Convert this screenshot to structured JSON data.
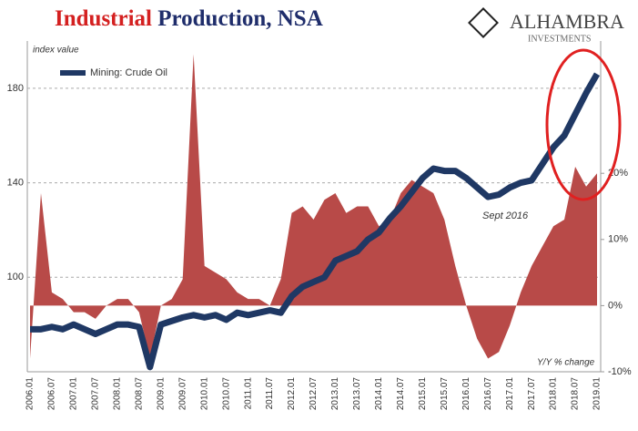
{
  "chart_data": {
    "type": "line-area",
    "title": "Industrial Production, NSA",
    "logo": {
      "name": "ALHAMBRA",
      "sub": "INVESTMENTS"
    },
    "y_label": "index value",
    "y2_label": "Y/Y % change",
    "annotation": "Sept 2016",
    "legend": "top-left",
    "categories": [
      "2006.01",
      null,
      "2006.07",
      null,
      "2007.01",
      null,
      "2007.07",
      null,
      "2008.01",
      null,
      "2008.07",
      null,
      "2009.01",
      null,
      "2009.07",
      null,
      "2010.01",
      null,
      "2010.07",
      null,
      "2011.01",
      null,
      "2011.07",
      null,
      "2012.01",
      null,
      "2012.07",
      null,
      "2013.01",
      null,
      "2013.07",
      null,
      "2014.01",
      null,
      "2014.07",
      null,
      "2015.01",
      null,
      "2015.07",
      null,
      "2016.01",
      null,
      "2016.07",
      null,
      "2017.01",
      null,
      "2017.07",
      null,
      "2018.01",
      null,
      "2018.07",
      null,
      "2019.01"
    ],
    "ylim": [
      60,
      200
    ],
    "yticks": [
      100,
      140,
      180
    ],
    "y2lim": [
      -10,
      40
    ],
    "y2ticks": [
      {
        "value": -10,
        "label": "-10%"
      },
      {
        "value": 0,
        "label": "0%"
      },
      {
        "value": 10,
        "label": "10%"
      },
      {
        "value": 20,
        "label": "20%"
      }
    ],
    "grid": true,
    "series": [
      {
        "name": "Y/Y % change",
        "color": "#b84a48",
        "axis": "y2",
        "kind": "area",
        "values": [
          -8,
          17,
          2,
          1,
          -1,
          -1,
          -2,
          0,
          1,
          1,
          -1,
          -8,
          0,
          1,
          4,
          38,
          6,
          5,
          4,
          2,
          1,
          1,
          0,
          4,
          14,
          15,
          13,
          16,
          17,
          14,
          15,
          15,
          12,
          13,
          17,
          19,
          18,
          17,
          13,
          6,
          0,
          -5,
          -8,
          -7,
          -3,
          2,
          6,
          9,
          12,
          13,
          21,
          18,
          20
        ]
      },
      {
        "name": "Mining: Crude Oil",
        "color": "#1f3864",
        "kind": "line",
        "values": [
          78,
          78,
          79,
          78,
          80,
          78,
          76,
          78,
          80,
          80,
          79,
          62,
          80,
          81.5,
          83,
          84,
          83,
          84,
          82,
          85,
          84,
          85,
          86,
          85,
          92,
          96,
          98,
          100,
          107,
          109,
          111,
          116,
          119,
          125,
          130,
          136,
          142,
          146,
          145,
          145,
          142,
          138,
          134,
          135,
          138,
          140,
          141,
          148,
          155,
          160,
          169,
          178,
          186
        ]
      }
    ]
  }
}
